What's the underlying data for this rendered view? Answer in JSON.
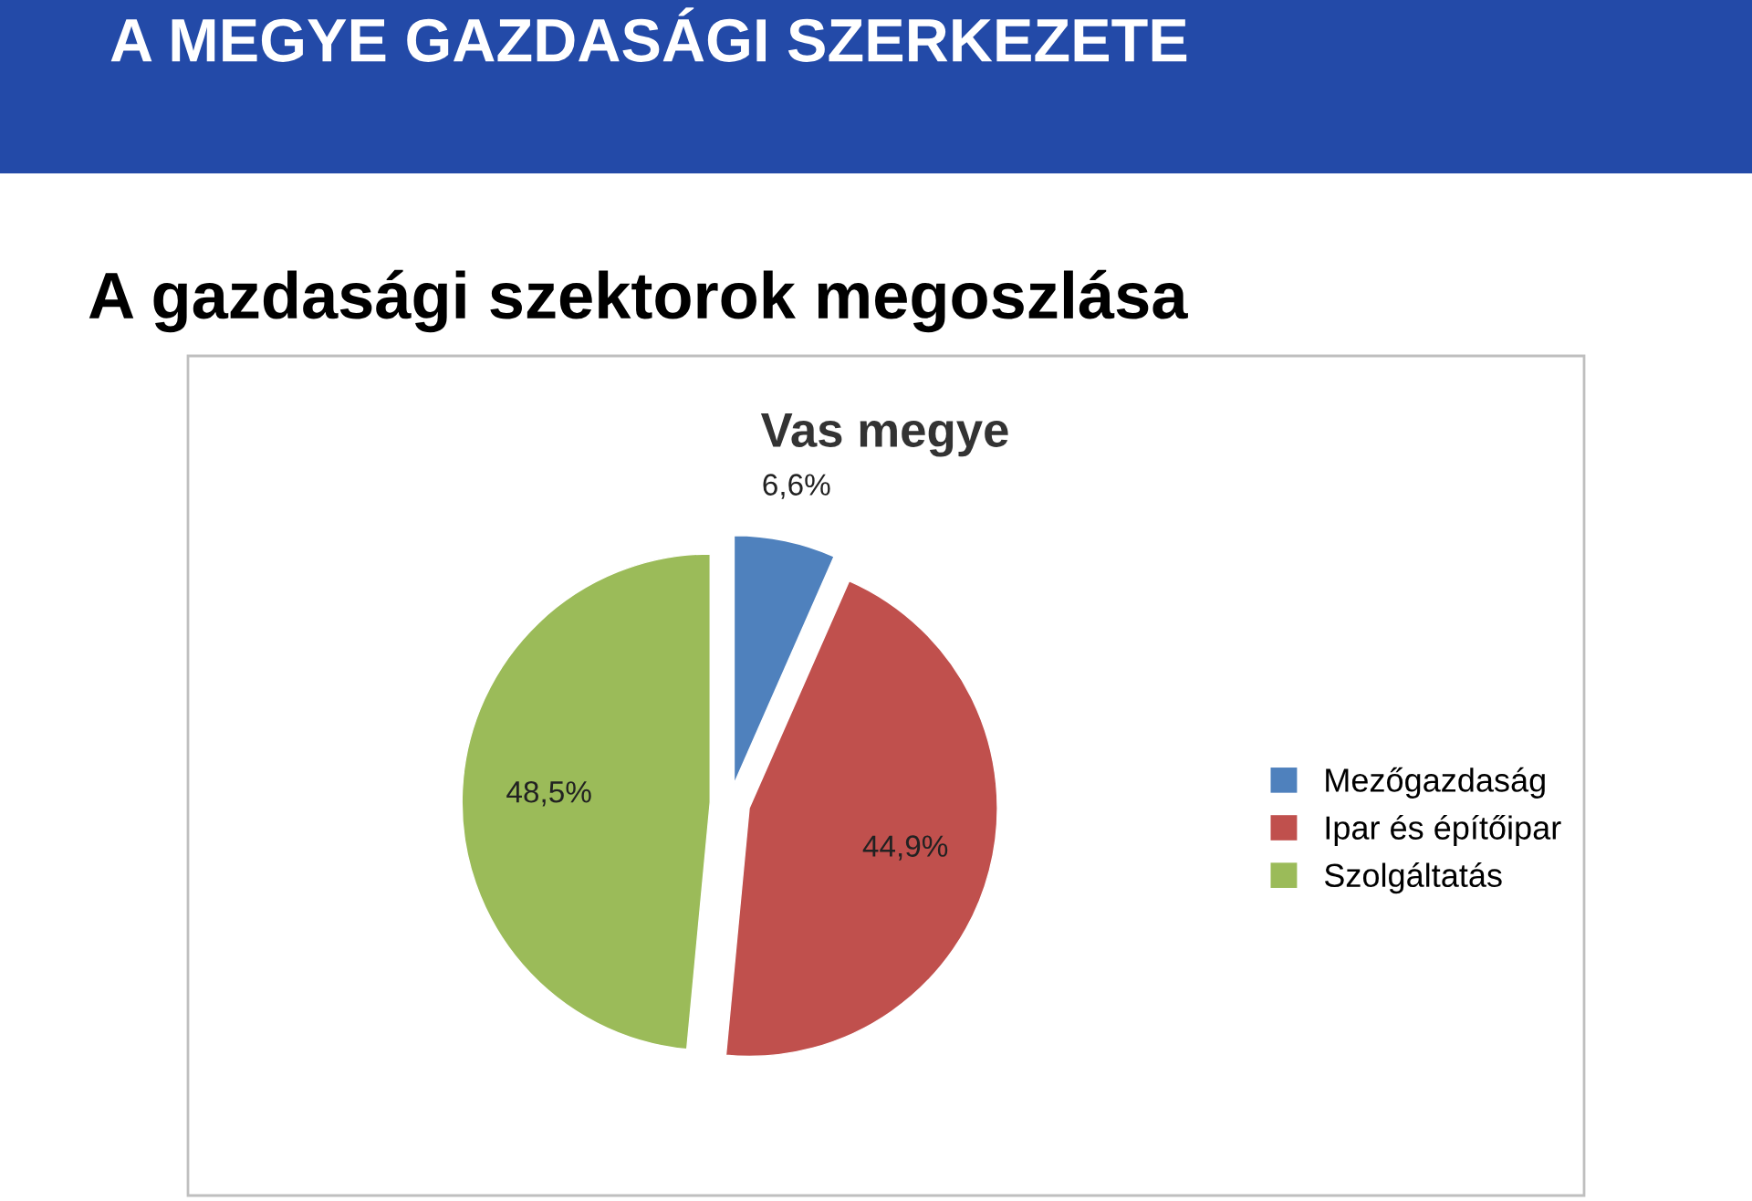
{
  "chart_data": {
    "type": "pie",
    "title": "A MEGYE GAZDASÁGI SZERKEZETE",
    "subtitle": "A gazdasági szektorok megoszlása",
    "annotations": [
      "Vas megye"
    ],
    "categories": [
      "Mezőgazdaság",
      "Ipar és építőipar",
      "Szolgáltatás"
    ],
    "values": [
      6.6,
      44.9,
      48.5
    ],
    "value_labels": [
      "6,6%",
      "44,9%",
      "48,5%"
    ],
    "colors": [
      "#4f81bd",
      "#c0504d",
      "#9bbb59"
    ],
    "legend": "right"
  }
}
